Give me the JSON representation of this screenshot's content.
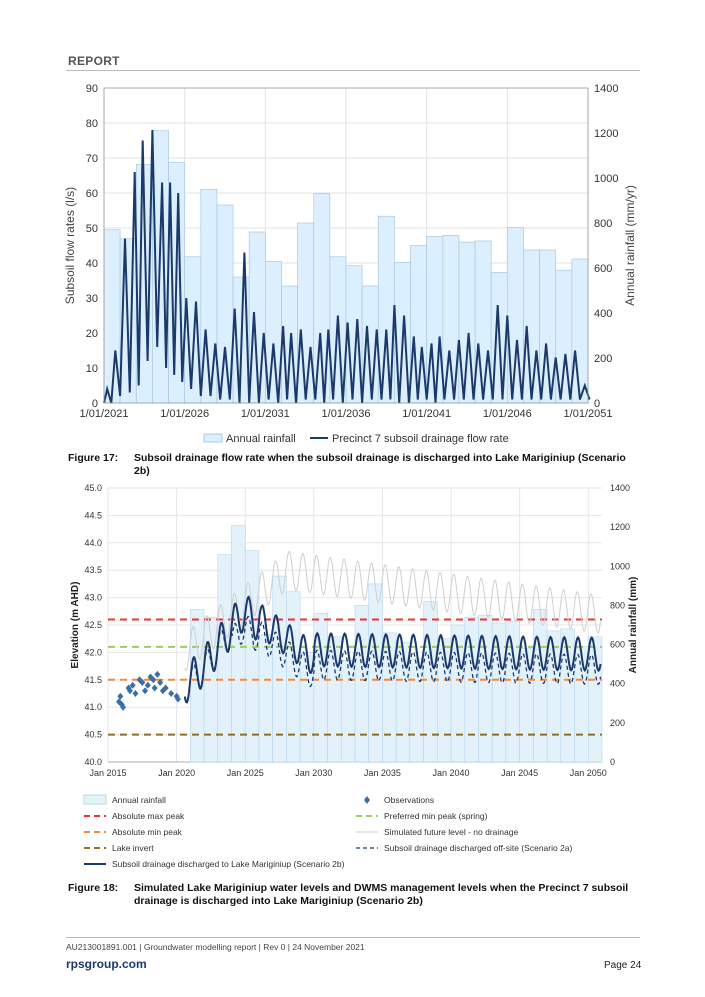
{
  "header": {
    "label": "REPORT"
  },
  "chart_data": [
    {
      "type": "bar+line",
      "title": "",
      "ylabel_left": "Subsoil flow rates (l/s)",
      "ylabel_right": "Annual rainfall (mm/yr)",
      "yticks_left": [
        "0",
        "10",
        "20",
        "30",
        "40",
        "50",
        "60",
        "70",
        "80",
        "90"
      ],
      "yticks_right": [
        "0",
        "200",
        "400",
        "600",
        "800",
        "1000",
        "1200",
        "1400"
      ],
      "xticks": [
        "1/01/2021",
        "1/01/2026",
        "1/01/2031",
        "1/01/2036",
        "1/01/2041",
        "1/01/2046",
        "1/01/2051"
      ],
      "ylim_left": [
        0,
        90
      ],
      "ylim_right": [
        0,
        1400
      ],
      "xlim": [
        2021,
        2051
      ],
      "legend": [
        "Annual rainfall",
        "Precinct 7 subsoil drainage flow rate"
      ],
      "series": [
        {
          "name": "Annual rainfall",
          "type": "bar",
          "x": [
            2021,
            2022,
            2023,
            2024,
            2025,
            2026,
            2027,
            2028,
            2029,
            2030,
            2031,
            2032,
            2033,
            2034,
            2035,
            2036,
            2037,
            2038,
            2039,
            2040,
            2041,
            2042,
            2043,
            2044,
            2045,
            2046,
            2047,
            2048,
            2049,
            2050
          ],
          "values": [
            770,
            730,
            1060,
            1210,
            1070,
            650,
            950,
            880,
            560,
            760,
            630,
            520,
            800,
            930,
            650,
            610,
            520,
            830,
            625,
            700,
            740,
            745,
            715,
            720,
            580,
            780,
            680,
            680,
            590,
            640
          ]
        },
        {
          "name": "Precinct 7 subsoil drainage flow rate",
          "type": "line",
          "peaks": [
            [
              2021.2,
              4
            ],
            [
              2021.7,
              15
            ],
            [
              2022.3,
              47
            ],
            [
              2022.9,
              66
            ],
            [
              2023.4,
              75
            ],
            [
              2024.0,
              78
            ],
            [
              2024.6,
              63
            ],
            [
              2025.1,
              63
            ],
            [
              2025.6,
              60
            ],
            [
              2026.1,
              30
            ],
            [
              2026.7,
              29
            ],
            [
              2027.3,
              21
            ],
            [
              2027.9,
              17
            ],
            [
              2028.5,
              16
            ],
            [
              2029.1,
              27
            ],
            [
              2029.7,
              43
            ],
            [
              2030.3,
              26
            ],
            [
              2030.9,
              20
            ],
            [
              2031.5,
              17
            ],
            [
              2032.1,
              22
            ],
            [
              2032.6,
              20
            ],
            [
              2033.2,
              21
            ],
            [
              2033.8,
              16
            ],
            [
              2034.4,
              20
            ],
            [
              2034.9,
              21
            ],
            [
              2035.5,
              25
            ],
            [
              2036.1,
              23
            ],
            [
              2036.7,
              24
            ],
            [
              2037.3,
              22
            ],
            [
              2037.9,
              21
            ],
            [
              2038.5,
              21
            ],
            [
              2039.0,
              28
            ],
            [
              2039.6,
              25
            ],
            [
              2040.2,
              19
            ],
            [
              2040.7,
              16
            ],
            [
              2041.3,
              17
            ],
            [
              2041.8,
              19
            ],
            [
              2042.4,
              15
            ],
            [
              2043.0,
              18
            ]
          ],
          "troughs": [
            [
              2021.0,
              0
            ],
            [
              2021.45,
              0
            ],
            [
              2022.0,
              2
            ],
            [
              2022.6,
              3
            ],
            [
              2023.15,
              5
            ],
            [
              2023.7,
              12
            ],
            [
              2024.3,
              16
            ],
            [
              2024.85,
              10
            ],
            [
              2025.35,
              8
            ],
            [
              2025.85,
              6
            ],
            [
              2026.4,
              4
            ],
            [
              2027.0,
              2
            ],
            [
              2027.6,
              2
            ],
            [
              2028.2,
              1
            ],
            [
              2028.8,
              1
            ],
            [
              2029.4,
              0
            ],
            [
              2030.0,
              0
            ],
            [
              2030.6,
              0
            ],
            [
              2031.2,
              1
            ],
            [
              2031.8,
              0
            ],
            [
              2032.35,
              1
            ],
            [
              2032.9,
              0
            ],
            [
              2033.5,
              1
            ],
            [
              2034.1,
              1
            ],
            [
              2034.65,
              0
            ],
            [
              2035.2,
              1
            ],
            [
              2035.8,
              0
            ],
            [
              2036.4,
              1
            ],
            [
              2037.0,
              0
            ],
            [
              2037.6,
              1
            ],
            [
              2038.2,
              1
            ],
            [
              2038.75,
              1
            ],
            [
              2039.3,
              0
            ],
            [
              2039.9,
              0
            ],
            [
              2040.45,
              1
            ],
            [
              2041.0,
              1
            ],
            [
              2041.55,
              0
            ],
            [
              2042.1,
              1
            ],
            [
              2042.7,
              1
            ],
            [
              2043.3,
              1
            ]
          ]
        }
      ]
    },
    {
      "type": "bar+line",
      "title": "",
      "ylabel_left": "Elevation (m AHD)",
      "ylabel_right": "Annual rainfall (mm)",
      "yticks_left": [
        "40.0",
        "40.5",
        "41.0",
        "41.5",
        "42.0",
        "42.5",
        "43.0",
        "43.5",
        "44.0",
        "44.5",
        "45.0"
      ],
      "yticks_right": [
        "0",
        "200",
        "400",
        "600",
        "800",
        "1000",
        "1200",
        "1400"
      ],
      "xticks": [
        "Jan 2015",
        "Jan 2020",
        "Jan 2025",
        "Jan 2030",
        "Jan 2035",
        "Jan 2040",
        "Jan 2045",
        "Jan 2050"
      ],
      "ylim_left": [
        40.0,
        45.0
      ],
      "ylim_right": [
        0,
        1400
      ],
      "xlim": [
        2015,
        2051
      ],
      "levels": [
        {
          "name": "Absolute max peak",
          "value": 42.6,
          "color": "#e53935"
        },
        {
          "name": "Preferred min peak (spring)",
          "value": 42.1,
          "color": "#9ccc65"
        },
        {
          "name": "Absolute min peak",
          "value": 41.5,
          "color": "#f08a3c"
        },
        {
          "name": "Lake invert",
          "value": 40.5,
          "color": "#8d6e2a"
        }
      ],
      "rainfall": {
        "name": "Annual rainfall",
        "x": [
          2021,
          2022,
          2023,
          2024,
          2025,
          2026,
          2027,
          2028,
          2029,
          2030,
          2031,
          2032,
          2033,
          2034,
          2035,
          2036,
          2037,
          2038,
          2039,
          2040,
          2041,
          2042,
          2043,
          2044,
          2045,
          2046,
          2047,
          2048,
          2049,
          2050
        ],
        "values": [
          780,
          740,
          1060,
          1210,
          1080,
          650,
          950,
          870,
          560,
          760,
          640,
          520,
          800,
          910,
          660,
          610,
          530,
          820,
          630,
          700,
          740,
          750,
          710,
          720,
          580,
          780,
          670,
          680,
          590,
          640
        ]
      },
      "observations": {
        "name": "Observations",
        "points": [
          [
            2015.8,
            41.1
          ],
          [
            2015.9,
            41.2
          ],
          [
            2016.0,
            41.05
          ],
          [
            2016.1,
            41.0
          ],
          [
            2016.5,
            41.35
          ],
          [
            2016.6,
            41.3
          ],
          [
            2016.8,
            41.4
          ],
          [
            2017.0,
            41.25
          ],
          [
            2017.3,
            41.5
          ],
          [
            2017.5,
            41.45
          ],
          [
            2017.7,
            41.3
          ],
          [
            2017.9,
            41.4
          ],
          [
            2018.1,
            41.55
          ],
          [
            2018.3,
            41.5
          ],
          [
            2018.4,
            41.35
          ],
          [
            2018.6,
            41.6
          ],
          [
            2018.8,
            41.45
          ],
          [
            2019.0,
            41.3
          ],
          [
            2019.2,
            41.35
          ],
          [
            2019.6,
            41.25
          ],
          [
            2020.0,
            41.2
          ],
          [
            2020.1,
            41.15
          ]
        ]
      },
      "series": [
        {
          "name": "Subsoil drainage discharged to Lake Mariginiup (Scenario 2b)",
          "color": "#1b3a6b"
        },
        {
          "name": "Subsoil drainage discharged off-site (Scenario 2a)",
          "color": "#1b3a6b"
        },
        {
          "name": "Simulated future level - no drainage",
          "color": "#c8c8c8"
        }
      ],
      "legend": [
        "Annual rainfall",
        "Observations",
        "Absolute max peak",
        "Preferred min peak (spring)",
        "Absolute min peak",
        "Simulated future level - no drainage",
        "Lake invert",
        "Subsoil drainage discharged off-site (Scenario 2a)",
        "Subsoil drainage discharged to Lake Mariginiup (Scenario 2b)"
      ]
    }
  ],
  "figure17": {
    "number": "Figure 17:",
    "text": "Subsoil drainage flow rate when the subsoil drainage is discharged into Lake Mariginiup (Scenario 2b)"
  },
  "figure18": {
    "number": "Figure 18:",
    "text": "Simulated Lake Mariginiup water levels and DWMS management levels when the Precinct 7 subsoil drainage is discharged into Lake Mariginiup (Scenario 2b)"
  },
  "footer": {
    "doc": "AU213001891.001  |  Groundwater modelling report   |  Rev 0  |  24 November 2021",
    "logo": "rpsgroup.com",
    "page": "Page 24"
  }
}
